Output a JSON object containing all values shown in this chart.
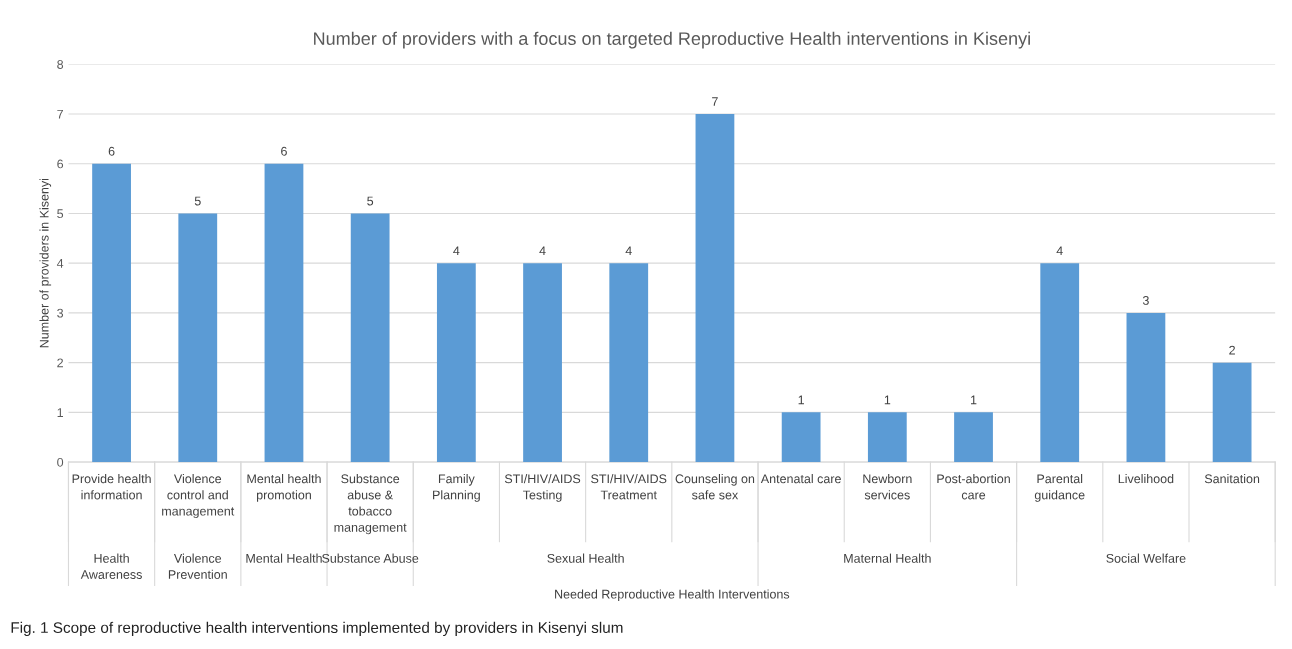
{
  "chart_data": {
    "type": "bar",
    "title": "Number of providers with a focus on targeted Reproductive Health interventions in Kisenyi",
    "xlabel": "Needed Reproductive Health Interventions",
    "ylabel": "Number of providers in Kisenyi",
    "categories": [
      "Provide health information",
      "Violence control and management",
      "Mental health promotion",
      "Substance abuse & tobacco management",
      "Family Planning",
      "STI/HIV/AIDS Testing",
      "STI/HIV/AIDS Treatment",
      "Counseling on safe sex",
      "Antenatal care",
      "Newborn services",
      "Post-abortion care",
      "Parental guidance",
      "Livelihood",
      "Sanitation"
    ],
    "values": [
      6,
      5,
      6,
      5,
      4,
      4,
      4,
      7,
      1,
      1,
      1,
      4,
      3,
      2
    ],
    "color": "#5b9bd5",
    "ylim": [
      0,
      8
    ],
    "yticks": [
      0,
      1,
      2,
      3,
      4,
      5,
      6,
      7,
      8
    ],
    "grid": "y",
    "data_labels": true,
    "annotations": [
      "Health Awareness",
      "Violence Prevention",
      "Mental Health",
      "Substance Abuse",
      "Sexual Health",
      "Maternal Health",
      "Social Welfare",
      "Fig. 1 Scope of reproductive health interventions implemented by providers in Kisenyi slum"
    ]
  }
}
